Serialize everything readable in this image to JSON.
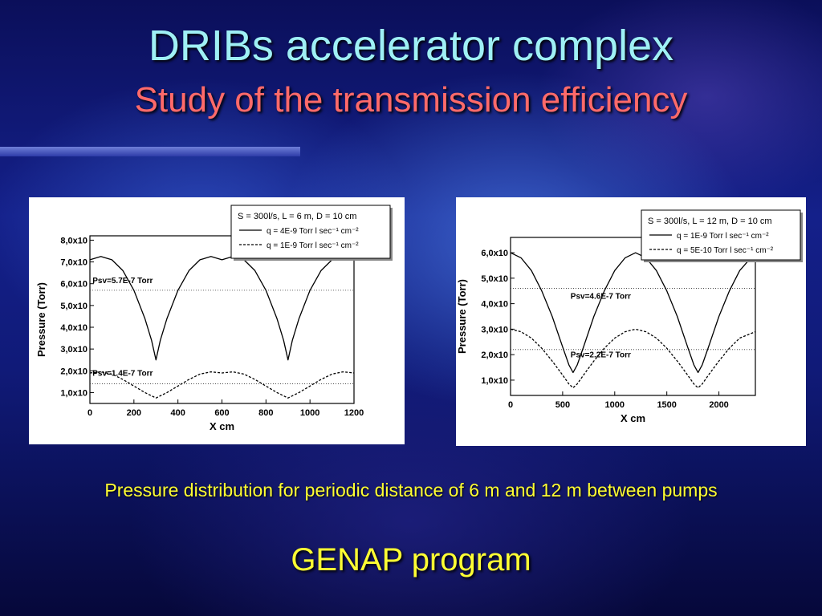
{
  "slide": {
    "title": "DRIBs accelerator complex",
    "subtitle": "Study of the transmission efficiency",
    "caption": "Pressure distribution for periodic distance of 6 m and 12 m between pumps",
    "program": "GENAP program"
  },
  "chart_data": [
    {
      "type": "line",
      "xlabel": "X cm",
      "ylabel": "Pressure (Torr)",
      "xlim": [
        0,
        1200
      ],
      "ylim": [
        0.5,
        8.2
      ],
      "x_ticks": [
        "0",
        "200",
        "400",
        "600",
        "800",
        "1000",
        "1200"
      ],
      "y_ticks": [
        {
          "v": 1,
          "label": "1,0x10"
        },
        {
          "v": 2,
          "label": "2,0x10"
        },
        {
          "v": 3,
          "label": "3,0x10"
        },
        {
          "v": 4,
          "label": "4,0x10"
        },
        {
          "v": 5,
          "label": "5,0x10"
        },
        {
          "v": 6,
          "label": "6,0x10"
        },
        {
          "v": 7,
          "label": "7,0x10"
        },
        {
          "v": 8,
          "label": "8,0x10"
        }
      ],
      "legend": {
        "header": "S = 300l/s, L = 6 m, D = 10 cm",
        "placement": "top-right",
        "entries": [
          "q = 4E-9 Torr l sec⁻¹ cm⁻²",
          "q = 1E-9 Torr l sec⁻¹ cm⁻²"
        ]
      },
      "annotations": [
        {
          "text": "Psv=5.7E-7 Torr",
          "x": 165,
          "y": 6.02
        },
        {
          "text": "Psv=1.4E-7 Torr",
          "x": 165,
          "y": 1.78
        }
      ],
      "avg_lines": [
        5.7,
        1.4
      ],
      "series": [
        {
          "style": "solid",
          "x": [
            0,
            50,
            100,
            150,
            200,
            250,
            280,
            300,
            320,
            350,
            400,
            450,
            500,
            550,
            600,
            650,
            700,
            750,
            800,
            850,
            880,
            900,
            920,
            950,
            1000,
            1050,
            1100,
            1150,
            1200
          ],
          "values": [
            7.1,
            7.25,
            7.1,
            6.6,
            5.7,
            4.4,
            3.4,
            2.5,
            3.4,
            4.4,
            5.7,
            6.6,
            7.1,
            7.25,
            7.1,
            7.25,
            7.1,
            6.6,
            5.7,
            4.4,
            3.4,
            2.5,
            3.4,
            4.4,
            5.7,
            6.6,
            7.1,
            7.25,
            7.1
          ]
        },
        {
          "style": "dashed",
          "x": [
            0,
            50,
            100,
            150,
            200,
            250,
            300,
            350,
            400,
            450,
            500,
            550,
            600,
            650,
            700,
            750,
            800,
            850,
            900,
            950,
            1000,
            1050,
            1100,
            1150,
            1200
          ],
          "values": [
            1.9,
            1.95,
            1.85,
            1.6,
            1.3,
            1.0,
            0.75,
            1.0,
            1.3,
            1.6,
            1.85,
            1.95,
            1.9,
            1.95,
            1.85,
            1.6,
            1.3,
            1.0,
            0.75,
            1.0,
            1.3,
            1.6,
            1.85,
            1.95,
            1.9
          ]
        }
      ]
    },
    {
      "type": "line",
      "xlabel": "X cm",
      "ylabel": "Pressure (Torr)",
      "xlim": [
        0,
        2350
      ],
      "ylim": [
        0.4,
        6.6
      ],
      "x_ticks": [
        "0",
        "500",
        "1000",
        "1500",
        "2000"
      ],
      "x_tick_values": [
        0,
        500,
        1000,
        1500,
        2000
      ],
      "y_ticks": [
        {
          "v": 1,
          "label": "1,0x10"
        },
        {
          "v": 2,
          "label": "2,0x10"
        },
        {
          "v": 3,
          "label": "3,0x10"
        },
        {
          "v": 4,
          "label": "4,0x10"
        },
        {
          "v": 5,
          "label": "5,0x10"
        },
        {
          "v": 6,
          "label": "6,0x10"
        }
      ],
      "legend": {
        "header": "S = 300l/s, L = 12 m, D = 10 cm",
        "placement": "top-right",
        "entries": [
          "q = 1E-9 Torr l sec⁻¹ cm⁻²",
          "q = 5E-10 Torr l sec⁻¹ cm⁻²"
        ]
      },
      "annotations": [
        {
          "text": "Psv=4.6E-7 Torr",
          "x": 900,
          "y": 4.2
        },
        {
          "text": "Psv=2.2E-7 Torr",
          "x": 900,
          "y": 1.9
        }
      ],
      "avg_lines": [
        4.6,
        2.2
      ],
      "series": [
        {
          "style": "solid",
          "x": [
            0,
            100,
            200,
            300,
            400,
            500,
            560,
            600,
            640,
            700,
            800,
            900,
            1000,
            1100,
            1200,
            1300,
            1400,
            1500,
            1600,
            1700,
            1760,
            1800,
            1840,
            1900,
            2000,
            2100,
            2200,
            2350
          ],
          "values": [
            6.0,
            5.8,
            5.3,
            4.5,
            3.5,
            2.3,
            1.6,
            1.3,
            1.6,
            2.3,
            3.5,
            4.5,
            5.3,
            5.8,
            6.0,
            5.8,
            5.3,
            4.5,
            3.5,
            2.3,
            1.6,
            1.3,
            1.6,
            2.3,
            3.5,
            4.5,
            5.3,
            6.0
          ]
        },
        {
          "style": "dashed",
          "x": [
            0,
            100,
            200,
            300,
            400,
            500,
            560,
            600,
            640,
            700,
            800,
            900,
            1000,
            1100,
            1200,
            1300,
            1400,
            1500,
            1600,
            1700,
            1760,
            1800,
            1840,
            1900,
            2000,
            2100,
            2200,
            2350
          ],
          "values": [
            3.0,
            2.9,
            2.65,
            2.25,
            1.75,
            1.2,
            0.85,
            0.7,
            0.85,
            1.2,
            1.75,
            2.25,
            2.65,
            2.9,
            3.0,
            2.9,
            2.65,
            2.25,
            1.75,
            1.2,
            0.85,
            0.7,
            0.85,
            1.2,
            1.75,
            2.25,
            2.65,
            2.9
          ]
        }
      ]
    }
  ]
}
